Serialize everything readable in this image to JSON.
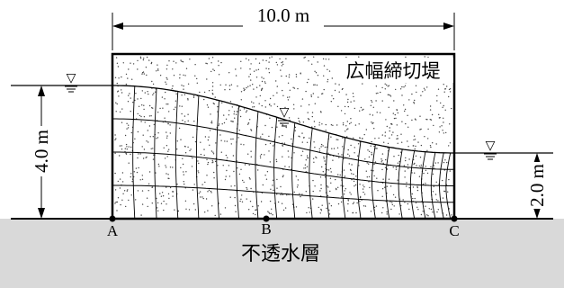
{
  "dimension_width": "10.0 m",
  "dimension_upstream_depth": "4.0 m",
  "dimension_downstream_depth": "2.0 m",
  "levee_label": "広幅締切堤",
  "base_label": "不透水層",
  "point_a": "A",
  "point_b": "B",
  "point_c": "C",
  "water_level_symbol": "▽",
  "colors": {
    "impermeable_layer": "#d9d9d9",
    "line": "#000000",
    "background": "#ffffff"
  }
}
